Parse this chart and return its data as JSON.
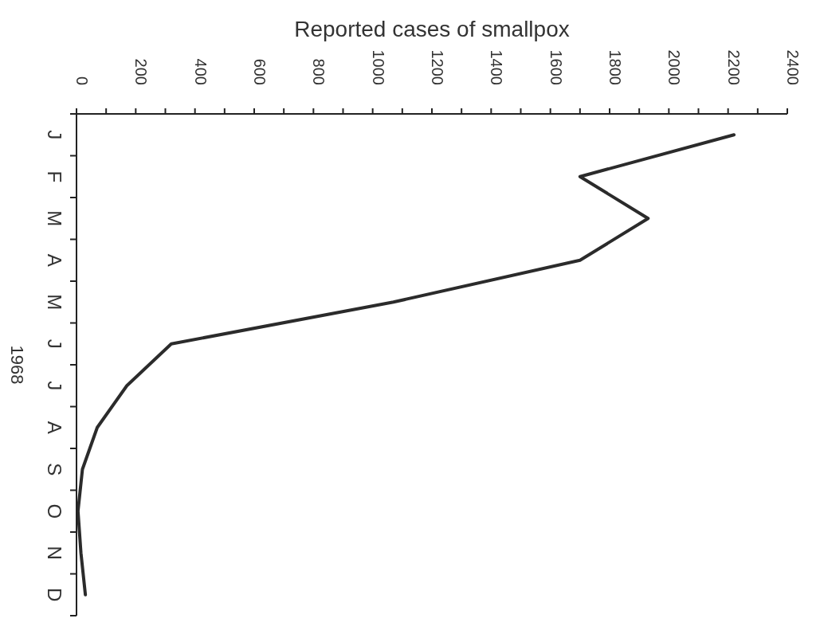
{
  "chart_data": {
    "type": "line",
    "orientation": "horizontal",
    "xlabel": "Reported cases of smallpox",
    "ylabel": "1968",
    "categories": [
      "J",
      "F",
      "M",
      "A",
      "M",
      "J",
      "J",
      "A",
      "S",
      "O",
      "N",
      "D"
    ],
    "series": [
      {
        "color": "#2b2b2b",
        "values": [
          2220,
          1700,
          1930,
          1700,
          1070,
          320,
          170,
          70,
          20,
          5,
          15,
          30
        ]
      }
    ],
    "xlim": [
      0,
      2400
    ],
    "xticks": [
      0,
      {
        "value": 100,
        "label": null
      },
      200,
      {
        "value": 300,
        "label": null
      },
      400,
      {
        "value": 500,
        "label": null
      },
      600,
      {
        "value": 700,
        "label": null
      },
      800,
      {
        "value": 900,
        "label": null
      },
      1000,
      {
        "value": 1100,
        "label": null
      },
      1200,
      {
        "value": 1300,
        "label": null
      },
      1400,
      {
        "value": 1500,
        "label": null
      },
      1600,
      {
        "value": 1700,
        "label": null
      },
      1800,
      {
        "value": 1900,
        "label": null
      },
      2000,
      {
        "value": 2100,
        "label": null
      },
      2200,
      {
        "value": 2300,
        "label": null
      },
      2400
    ],
    "marker": "none",
    "line_style": "solid"
  }
}
